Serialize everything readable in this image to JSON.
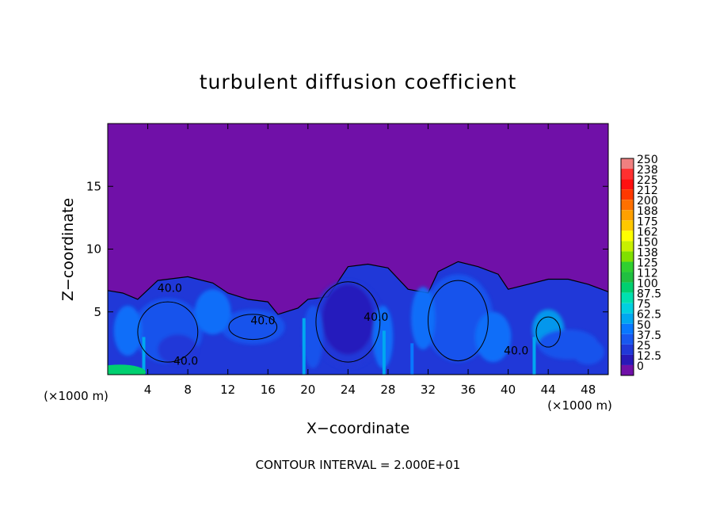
{
  "chart_data": {
    "type": "heatmap",
    "title": "turbulent diffusion coefficient",
    "xlabel": "X−coordinate",
    "ylabel": "Z−coordinate",
    "x_unit": "(×1000 m)",
    "y_unit": "(×1000 m)",
    "xlim": [
      0,
      50
    ],
    "ylim": [
      0,
      20
    ],
    "x_ticks": [
      4,
      8,
      12,
      16,
      20,
      24,
      28,
      32,
      36,
      40,
      44,
      48
    ],
    "y_ticks": [
      5,
      10,
      15
    ],
    "footer": "CONTOUR INTERVAL = 2.000E+01",
    "contour_labels": [
      {
        "text": "40.0",
        "x": 6.2,
        "z": 6.6
      },
      {
        "text": "40.0",
        "x": 7.8,
        "z": 0.8
      },
      {
        "text": "40.0",
        "x": 15.5,
        "z": 4.0
      },
      {
        "text": "40.0",
        "x": 26.8,
        "z": 4.3
      },
      {
        "text": "40.0",
        "x": 40.8,
        "z": 1.6
      }
    ],
    "background_value": 0,
    "cloud_top_profile": [
      [
        0,
        6.7
      ],
      [
        1.5,
        6.5
      ],
      [
        3,
        6.0
      ],
      [
        5,
        7.5
      ],
      [
        8,
        7.8
      ],
      [
        10.5,
        7.3
      ],
      [
        12,
        6.5
      ],
      [
        14,
        6.0
      ],
      [
        16,
        5.8
      ],
      [
        17,
        4.8
      ],
      [
        19,
        5.3
      ],
      [
        20,
        6.0
      ],
      [
        22,
        6.2
      ],
      [
        24,
        8.6
      ],
      [
        26,
        8.8
      ],
      [
        28,
        8.5
      ],
      [
        30,
        6.8
      ],
      [
        32,
        6.5
      ],
      [
        33,
        8.2
      ],
      [
        35,
        9.0
      ],
      [
        37,
        8.6
      ],
      [
        39,
        8.0
      ],
      [
        40,
        6.8
      ],
      [
        42,
        7.2
      ],
      [
        44,
        7.6
      ],
      [
        46,
        7.6
      ],
      [
        48,
        7.2
      ],
      [
        50,
        6.6
      ]
    ],
    "legend": {
      "values": [
        "250",
        "238",
        "225",
        "212",
        "200",
        "188",
        "175",
        "162",
        "150",
        "138",
        "125",
        "112",
        "100",
        "87.5",
        "75",
        "62.5",
        "50",
        "37.5",
        "25",
        "12.5",
        "0"
      ],
      "colors": [
        "#f08080",
        "#ff3030",
        "#ff1010",
        "#ff3800",
        "#ff7000",
        "#ffa000",
        "#ffc800",
        "#ffff00",
        "#c8f000",
        "#80e000",
        "#30d030",
        "#20c040",
        "#00d070",
        "#00e0b0",
        "#00d0e0",
        "#00a8f0",
        "#0878ff",
        "#1858f0",
        "#2038d8",
        "#2818b8",
        "#7010a8"
      ]
    }
  }
}
